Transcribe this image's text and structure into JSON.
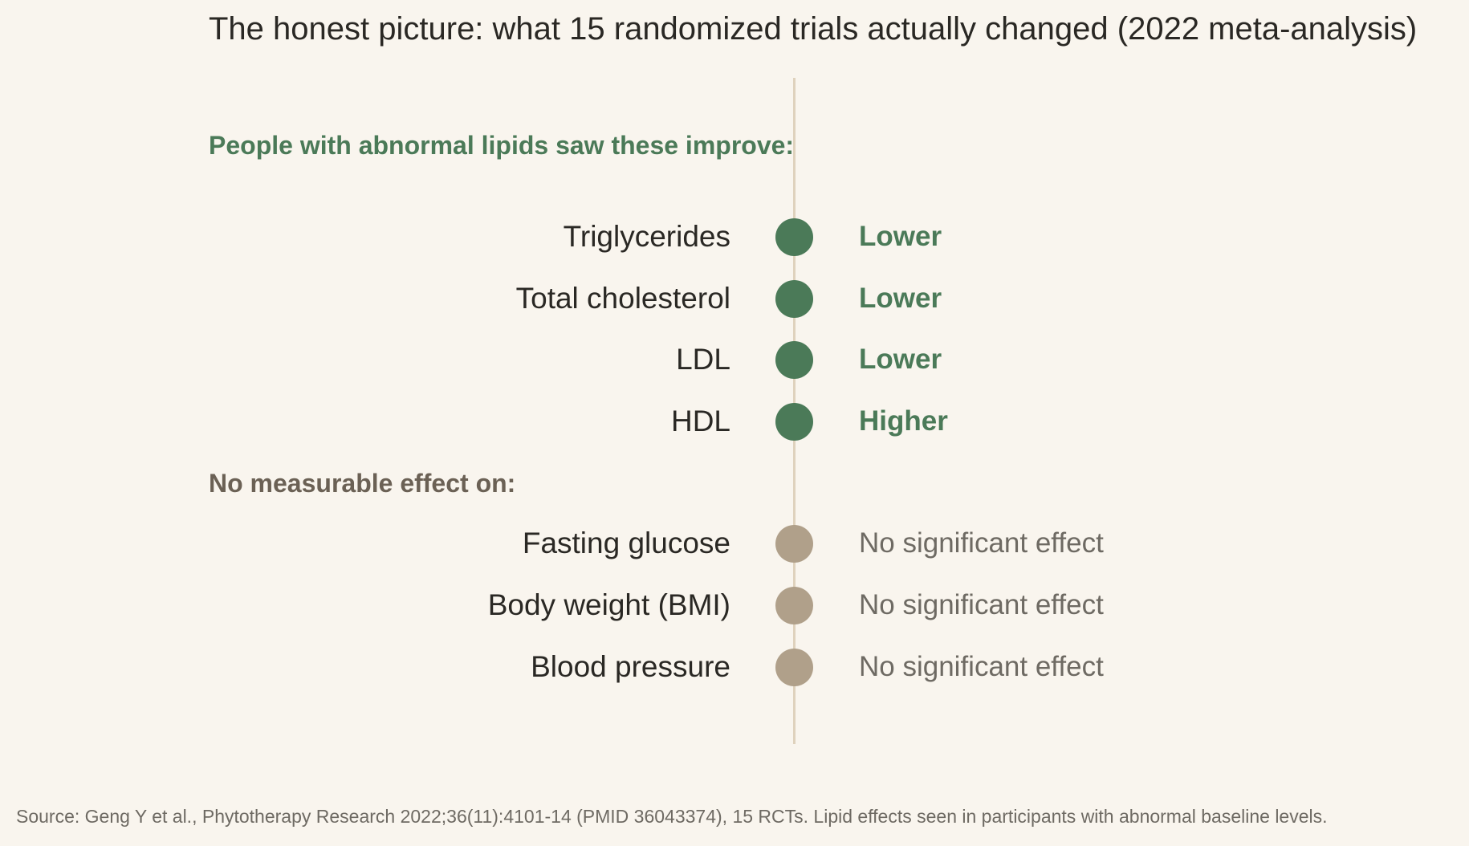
{
  "chart_data": {
    "type": "table",
    "title": "The honest picture: what 15 randomized trials actually changed (2022 meta-analysis)",
    "groups": [
      {
        "heading": "People with abnormal lipids saw these improve:",
        "color": "#4b7a58",
        "items": [
          {
            "metric": "Triglycerides",
            "effect": "Lower"
          },
          {
            "metric": "Total cholesterol",
            "effect": "Lower"
          },
          {
            "metric": "LDL",
            "effect": "Lower"
          },
          {
            "metric": "HDL",
            "effect": "Higher"
          }
        ]
      },
      {
        "heading": "No measurable effect on:",
        "color": "#b0a08a",
        "heading_color": "#6b6155",
        "text_color": "#6e6a63",
        "items": [
          {
            "metric": "Fasting glucose",
            "effect": "No significant effect"
          },
          {
            "metric": "Body weight (BMI)",
            "effect": "No significant effect"
          },
          {
            "metric": "Blood pressure",
            "effect": "No significant effect"
          }
        ]
      }
    ],
    "source": "Source: Geng Y et al., Phytotherapy Research 2022;36(11):4101-14 (PMID 36043374), 15 RCTs. Lipid effects seen in participants with abnormal baseline levels."
  },
  "colors": {
    "background": "#f9f5ee",
    "significant": "#4b7a58",
    "not_significant_dot": "#b0a08a",
    "not_significant_text": "#6e6a63",
    "no_effect_heading": "#6b6155",
    "axis_line": "#dfd2bd"
  }
}
